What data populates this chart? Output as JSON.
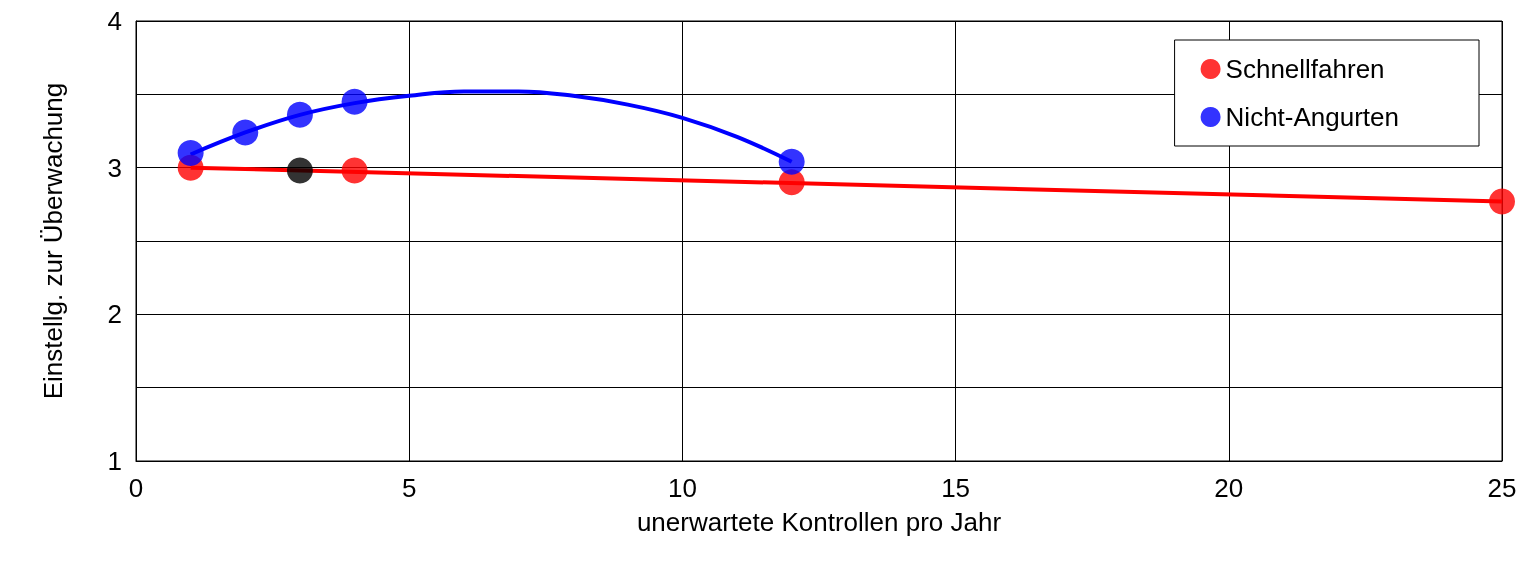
{
  "chart_data": {
    "type": "scatter",
    "xlabel": "unerwartete Kontrollen pro Jahr",
    "ylabel": "Einstellg. zur Überwachung",
    "xlim": [
      0,
      25
    ],
    "xticks": [
      0,
      5,
      10,
      15,
      20,
      25
    ],
    "ylim": [
      1,
      4
    ],
    "yticks": [
      1,
      {
        "value": 1.5,
        "label": null
      },
      2,
      {
        "value": 2.5,
        "label": null
      },
      3,
      {
        "value": 3.5,
        "label": null
      },
      4
    ],
    "grid": true,
    "legend": "top right",
    "marker": "circle",
    "series": [
      {
        "type": "line",
        "marker": "none",
        "color": "#ff0000",
        "x": [
          1,
          25
        ],
        "values": [
          3.0,
          2.77
        ]
      },
      {
        "type": "line",
        "marker": "none",
        "color": "#0000ff",
        "x": [
          1,
          2,
          3,
          4,
          5,
          6,
          7,
          8,
          9,
          10,
          11,
          12
        ],
        "values": [
          3.09,
          3.24,
          3.36,
          3.44,
          3.49,
          3.52,
          3.52,
          3.49,
          3.43,
          3.34,
          3.21,
          3.04
        ]
      },
      {
        "name": "Schnellfahren",
        "color": "#ff0000",
        "x": [
          1,
          4,
          12,
          25
        ],
        "values": [
          3.0,
          2.98,
          2.9,
          2.77
        ]
      },
      {
        "name": "Nicht-Angurten",
        "color": "#0000ff",
        "x": [
          1,
          2,
          3,
          4,
          12
        ],
        "values": [
          3.1,
          3.24,
          3.36,
          3.45,
          3.04
        ]
      },
      {
        "color": "#000000",
        "x": [
          3
        ],
        "values": [
          2.98
        ]
      }
    ]
  }
}
